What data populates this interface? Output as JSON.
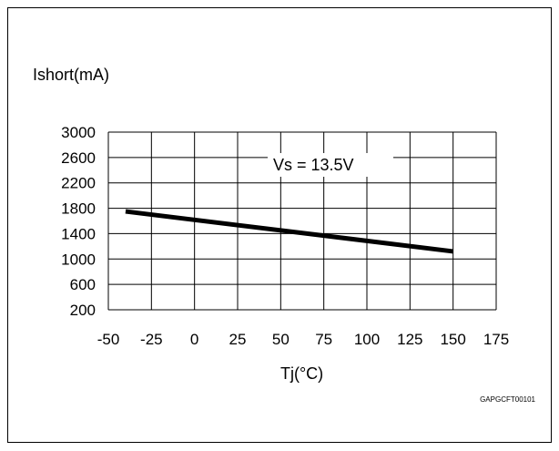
{
  "figure_code": "GAPGCFT00101",
  "chart_data": {
    "type": "line",
    "title": "",
    "xlabel": "Tj(°C)",
    "ylabel": "Ishort(mA)",
    "xlim": [
      -50,
      150
    ],
    "ylim": [
      200,
      3000
    ],
    "x_ticks": [
      -50,
      -25,
      0,
      25,
      50,
      75,
      100,
      125,
      150,
      175
    ],
    "y_ticks": [
      200,
      600,
      1000,
      1400,
      1800,
      2200,
      2600,
      3000
    ],
    "grid": true,
    "annotation": "Vs = 13.5V",
    "series": [
      {
        "x": [
          -40,
          150
        ],
        "y": [
          1750,
          1120
        ]
      }
    ]
  }
}
